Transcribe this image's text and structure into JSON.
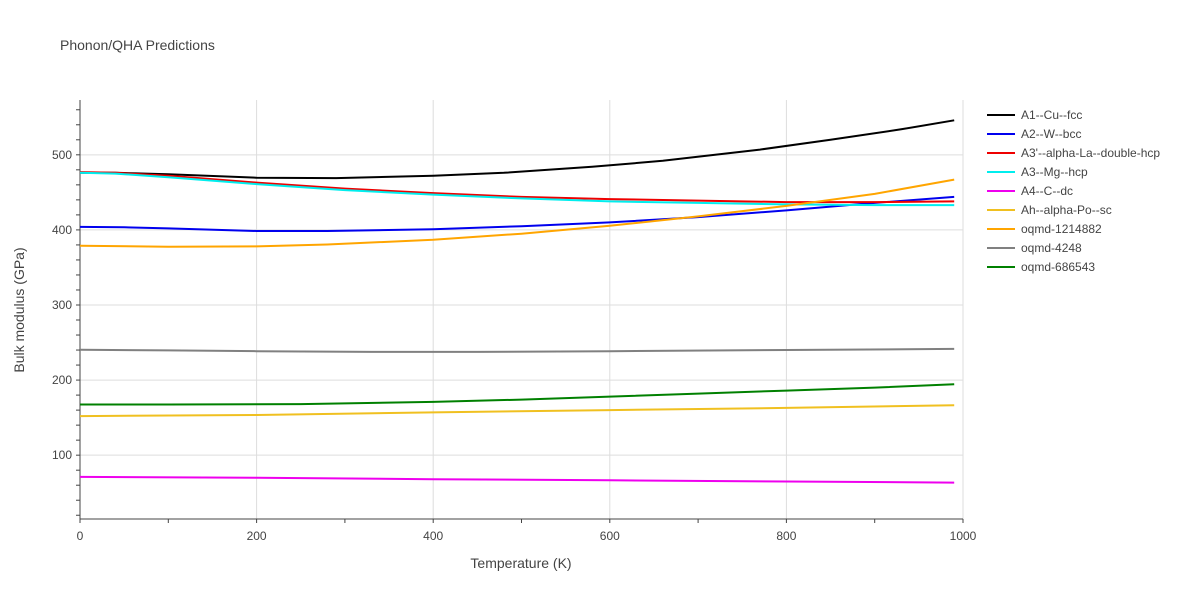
{
  "chart_data": {
    "type": "line",
    "title": "Phonon/QHA Predictions",
    "xlabel": "Temperature (K)",
    "ylabel": "Bulk modulus (GPa)",
    "xlim": [
      0,
      1000
    ],
    "ylim": [
      15,
      573
    ],
    "xticks": [
      0,
      200,
      400,
      600,
      800,
      1000
    ],
    "yticks": [
      100,
      200,
      300,
      400,
      500
    ],
    "grid": true,
    "legend_position": "right",
    "series": [
      {
        "name": "A1--Cu--fcc",
        "color": "#000000",
        "x": [
          0,
          40,
          100,
          200,
          290,
          400,
          480,
          580,
          660,
          770,
          850,
          930,
          990
        ],
        "y": [
          476,
          476,
          474,
          469.5,
          469,
          472,
          476,
          484,
          492,
          507,
          520,
          534,
          546
        ]
      },
      {
        "name": "A2--W--bcc",
        "color": "#0000ee",
        "x": [
          0,
          50,
          100,
          200,
          280,
          400,
          500,
          600,
          700,
          800,
          900,
          990
        ],
        "y": [
          404,
          403.5,
          402,
          398.5,
          398.5,
          401,
          405,
          410,
          417,
          426,
          436,
          444
        ]
      },
      {
        "name": "A3'--alpha-La--double-hcp",
        "color": "#ee0000",
        "x": [
          0,
          40,
          100,
          200,
          300,
          400,
          500,
          600,
          700,
          800,
          900,
          990
        ],
        "y": [
          477,
          476,
          472,
          463,
          455,
          449,
          444,
          441,
          439,
          437,
          437,
          438
        ]
      },
      {
        "name": "A3--Mg--hcp",
        "color": "#00eeee",
        "x": [
          0,
          40,
          100,
          200,
          300,
          400,
          500,
          600,
          700,
          800,
          900,
          990
        ],
        "y": [
          476,
          475,
          470,
          461,
          453,
          447,
          442,
          438,
          436,
          434,
          433,
          433
        ]
      },
      {
        "name": "A4--C--dc",
        "color": "#ee00ee",
        "x": [
          0,
          200,
          400,
          600,
          800,
          990
        ],
        "y": [
          71,
          70,
          68,
          66.5,
          65,
          63.5
        ]
      },
      {
        "name": "Ah--alpha-Po--sc",
        "color": "#f0c020",
        "x": [
          0,
          200,
          400,
          600,
          800,
          990
        ],
        "y": [
          152,
          153.5,
          157,
          160,
          163,
          166.5
        ]
      },
      {
        "name": "oqmd-1214882",
        "color": "#ffa500",
        "x": [
          0,
          100,
          200,
          280,
          400,
          500,
          600,
          700,
          800,
          900,
          990
        ],
        "y": [
          379,
          377.5,
          378,
          380.5,
          387,
          395,
          405.5,
          418,
          432,
          448,
          467
        ]
      },
      {
        "name": "oqmd-4248",
        "color": "#808080",
        "x": [
          0,
          100,
          200,
          330,
          450,
          600,
          800,
          990
        ],
        "y": [
          240.5,
          239.5,
          238.5,
          237.5,
          237.5,
          238.5,
          240,
          241.5
        ]
      },
      {
        "name": "oqmd-686543",
        "color": "#008000",
        "x": [
          0,
          100,
          250,
          400,
          500,
          600,
          700,
          800,
          900,
          990
        ],
        "y": [
          167.5,
          167.5,
          168,
          171,
          174,
          178,
          182,
          186,
          190,
          194.5
        ]
      }
    ]
  }
}
